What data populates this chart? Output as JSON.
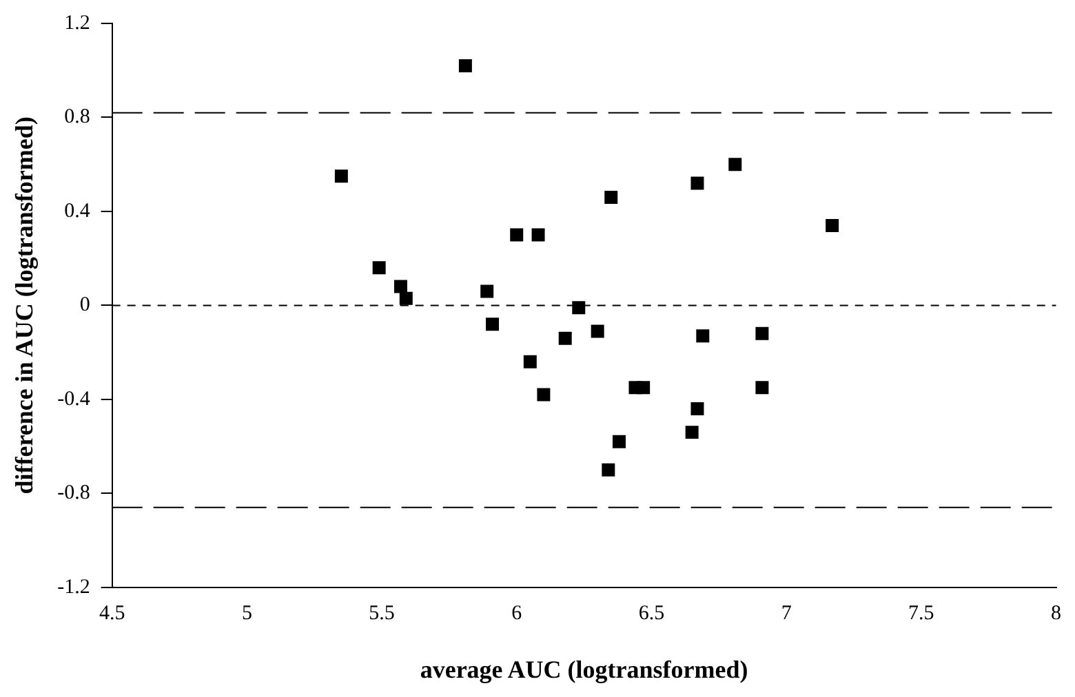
{
  "chart_data": {
    "type": "scatter",
    "xlabel": "average AUC (logtransformed)",
    "ylabel": "difference in AUC (logtransformed)",
    "x": [
      5.81,
      5.35,
      6.0,
      6.08,
      5.49,
      5.57,
      5.59,
      5.89,
      6.23,
      5.91,
      6.18,
      6.05,
      6.1,
      6.3,
      6.81,
      6.67,
      6.35,
      7.17,
      6.69,
      6.91,
      6.44,
      6.47,
      6.91,
      6.67,
      6.65,
      6.38,
      6.34
    ],
    "series": [
      {
        "color": "#000000",
        "values": [
          1.02,
          0.55,
          0.3,
          0.3,
          0.16,
          0.08,
          0.03,
          0.06,
          -0.01,
          -0.08,
          -0.14,
          -0.24,
          -0.38,
          -0.11,
          0.6,
          0.52,
          0.46,
          0.34,
          -0.13,
          -0.12,
          -0.35,
          -0.35,
          -0.35,
          -0.44,
          -0.54,
          -0.58,
          -0.7
        ]
      }
    ],
    "marker": "square",
    "legend": false,
    "grid": false,
    "xlim": [
      4.5,
      8
    ],
    "xticks": [
      4.5,
      5,
      5.5,
      6,
      6.5,
      7,
      7.5,
      8
    ],
    "ylim": [
      -1.2,
      1.2
    ],
    "yticks": [
      -1.2,
      -0.8,
      -0.4,
      0,
      0.4,
      0.8,
      1.2
    ],
    "ref_lines": [
      {
        "axis": "y",
        "value": 0.82,
        "line_style": "dashed",
        "color": "#000000"
      },
      {
        "axis": "y",
        "value": 0,
        "line_style": "dotted",
        "color": "#000000"
      },
      {
        "axis": "y",
        "value": -0.86,
        "line_style": "dashed",
        "color": "#000000"
      }
    ]
  }
}
